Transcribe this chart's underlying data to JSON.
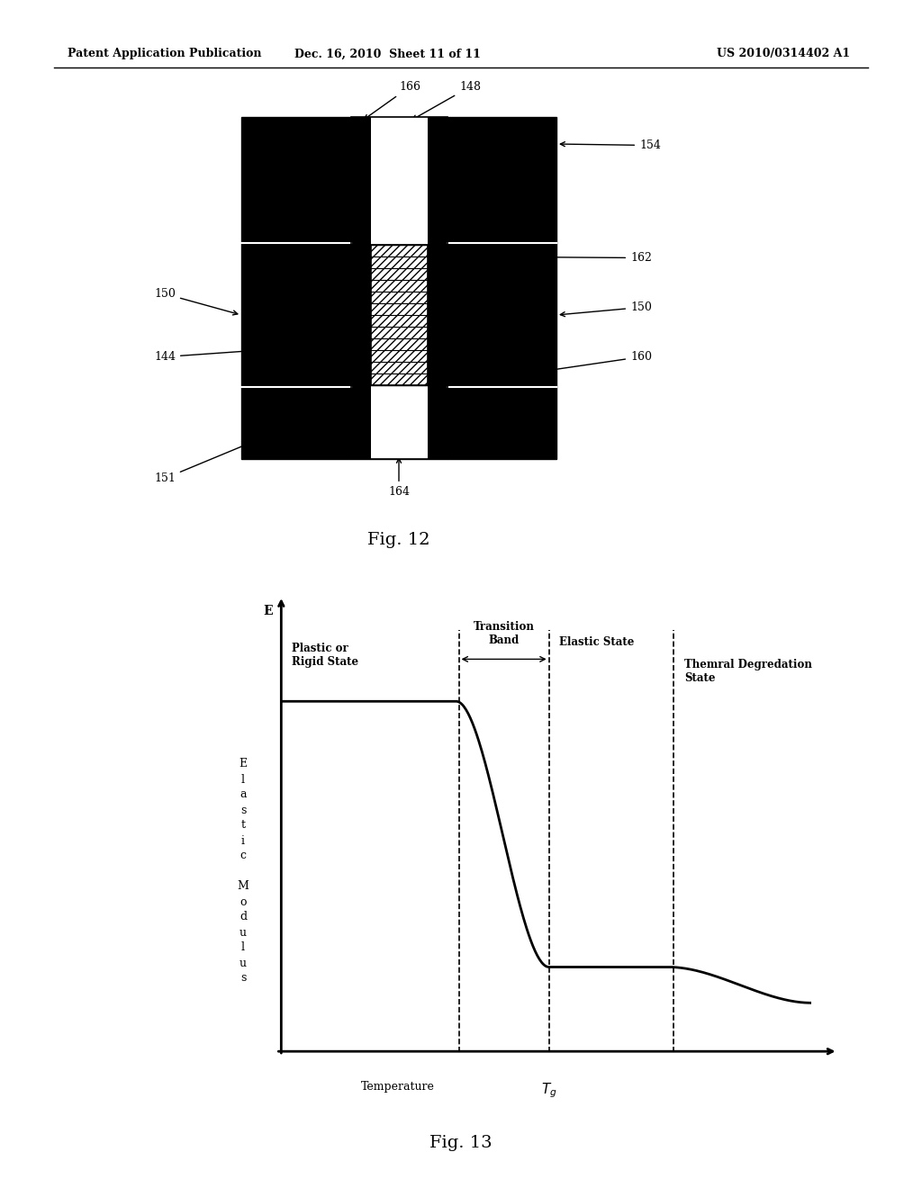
{
  "header_left": "Patent Application Publication",
  "header_mid": "Dec. 16, 2010  Sheet 11 of 11",
  "header_right": "US 2010/0314402 A1",
  "fig12_caption": "Fig. 12",
  "fig13_caption": "Fig. 13",
  "background": "#ffffff",
  "black": "#000000",
  "white": "#ffffff"
}
